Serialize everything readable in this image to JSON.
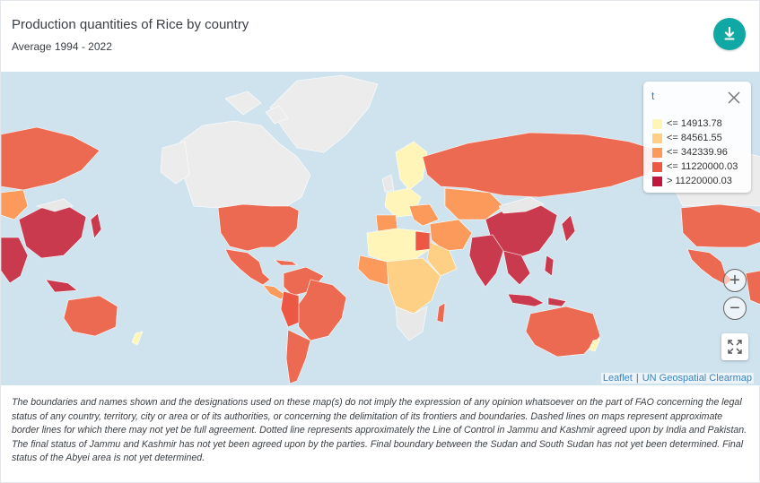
{
  "header": {
    "title": "Production quantities of Rice by country",
    "subtitle": "Average 1994 - 2022"
  },
  "toolbar": {
    "download_icon": "download-icon"
  },
  "legend": {
    "title": "t",
    "items": [
      {
        "label": "<= 14913.78",
        "color": "#fff5b8"
      },
      {
        "label": "<= 84561.55",
        "color": "#fdd086"
      },
      {
        "label": "<= 342339.96",
        "color": "#fb9a5a"
      },
      {
        "label": "<= 11220000.03",
        "color": "#ed5844"
      },
      {
        "label": "> 11220000.03",
        "color": "#c0173f"
      }
    ],
    "close_icon": "close-icon"
  },
  "map_controls": {
    "zoom_in": "+",
    "zoom_out": "−",
    "fullscreen_icon": "expand-icon"
  },
  "attribution": {
    "leaflet": "Leaflet",
    "separator": "|",
    "source": "UN Geospatial Clearmap"
  },
  "colors": {
    "ocean": "#cfe3ef",
    "no_data": "#e8e8e8",
    "accent": "#10a8a4"
  },
  "disclaimer": "The boundaries and names shown and the designations used on these map(s) do not imply the expression of any opinion whatsoever on the part of FAO concerning the legal status of any country, territory, city or area or of its authorities, or concerning the delimitation of its frontiers and boundaries. Dashed lines on maps represent approximate border lines for which there may not yet be full agreement. Dotted line represents approximately the Line of Control in Jammu and Kashmir agreed upon by India and Pakistan. The final status of Jammu and Kashmir has not yet been agreed upon by the parties. Final boundary between the Sudan and South Sudan has not yet been determined. Final status of the Abyei area is not yet determined."
}
